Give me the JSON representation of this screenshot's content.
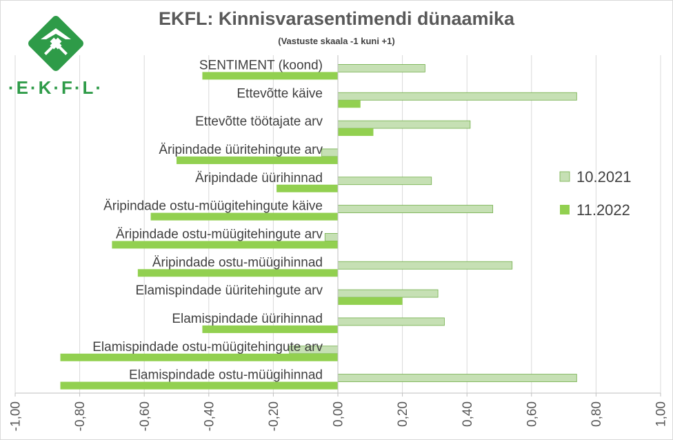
{
  "logo": {
    "text": "·E·K·F·L·",
    "icon": "ekfl-diamond-logo",
    "color": "#2e9b48"
  },
  "chart_data": {
    "type": "bar",
    "orientation": "horizontal",
    "title": "EKFL: Kinnisvarasentimendi dünaamika",
    "subtitle": "(Vastuste skaala -1 kuni +1)",
    "categories": [
      "SENTIMENT (koond)",
      "Ettevõtte käive",
      "Ettevõtte töötajate arv",
      "Äripindade üüritehingute arv",
      "Äripindade üürihinnad",
      "Äripindade ostu-müügitehingute käive",
      "Äripindade ostu-müügitehingute arv",
      "Äripindade ostu-müügihinnad",
      "Elamispindade üüritehingute arv",
      "Elamispindade üürihinnad",
      "Elamispindade ostu-müügitehingute arv",
      "Elamispindade ostu-müügihinnad"
    ],
    "series": [
      {
        "name": "10.2021",
        "color": "#c6e0b4",
        "border": "#70ad47",
        "values": [
          0.27,
          0.74,
          0.41,
          -0.05,
          0.29,
          0.48,
          -0.04,
          0.54,
          0.31,
          0.33,
          -0.15,
          0.74
        ]
      },
      {
        "name": "11.2022",
        "color": "#92d050",
        "border": "#92d050",
        "values": [
          -0.42,
          0.07,
          0.11,
          -0.5,
          -0.19,
          -0.58,
          -0.7,
          -0.62,
          0.2,
          -0.42,
          -0.86,
          -0.86
        ]
      }
    ],
    "xlim": [
      -1.0,
      1.0
    ],
    "x_ticks": [
      "-1,00",
      "-0,80",
      "-0,60",
      "-0,40",
      "-0,20",
      "0,00",
      "0,20",
      "0,40",
      "0,60",
      "0,80",
      "1,00"
    ],
    "grid": true,
    "legend_position": "right"
  }
}
